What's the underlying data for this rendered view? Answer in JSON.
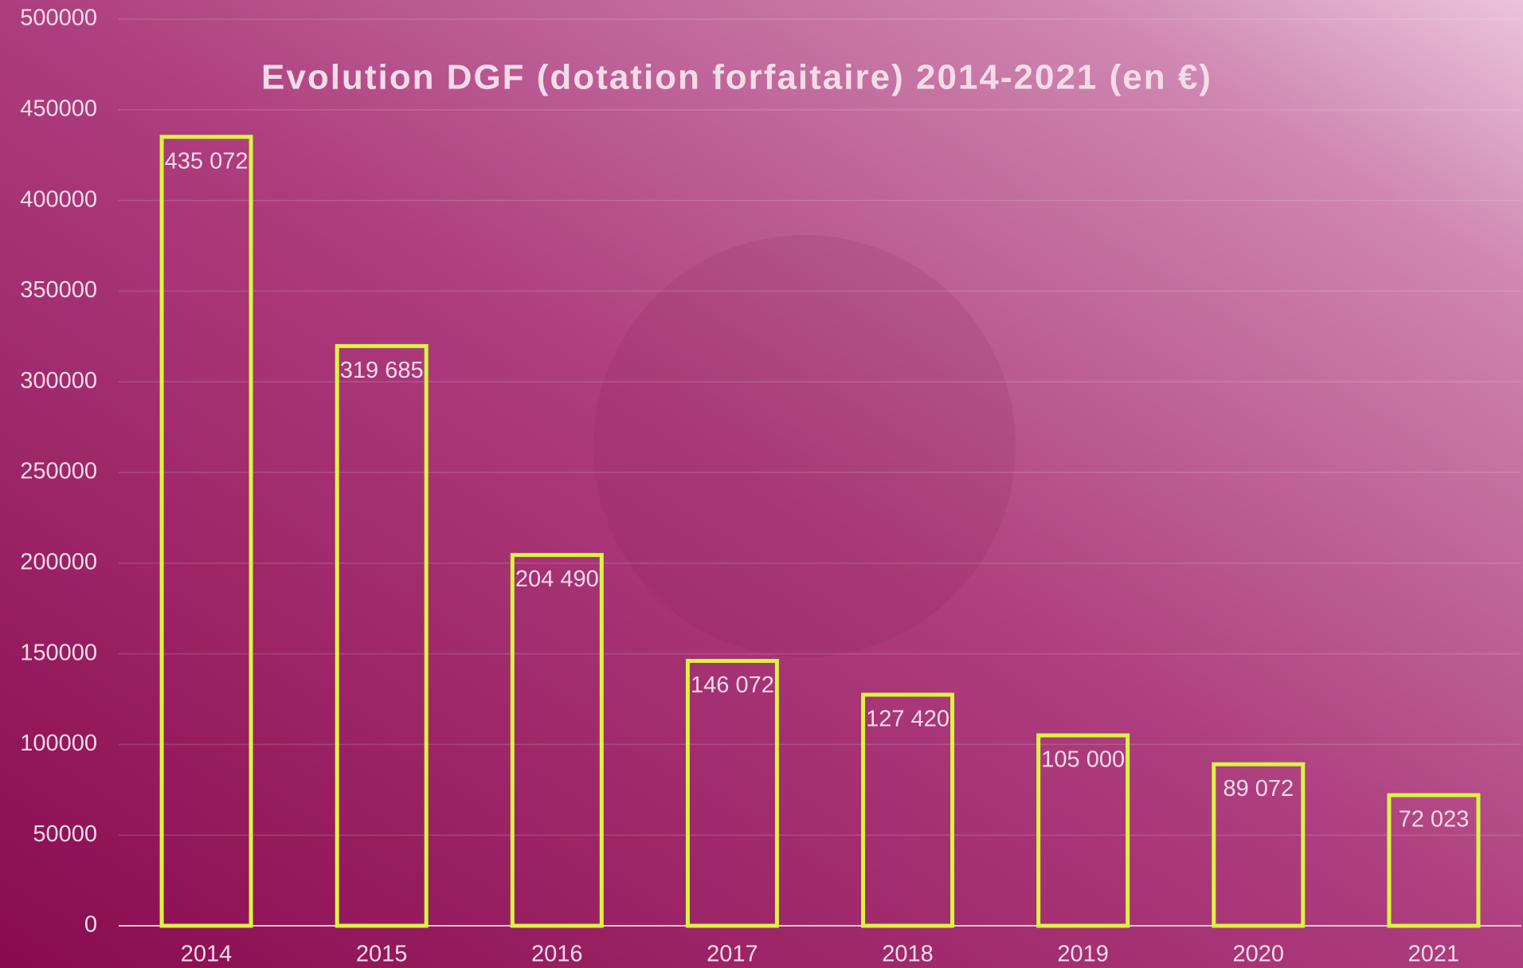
{
  "chart_data": {
    "type": "bar",
    "title": "Evolution DGF (dotation forfaitaire) 2014-2021 (en €)",
    "categories": [
      "2014",
      "2015",
      "2016",
      "2017",
      "2018",
      "2019",
      "2020",
      "2021"
    ],
    "values": [
      435072,
      319685,
      204490,
      146072,
      127420,
      105000,
      89072,
      72023
    ],
    "value_labels": [
      "435 072",
      "319 685",
      "204 490",
      "146 072",
      "127 420",
      "105 000",
      "89 072",
      "72 023"
    ],
    "color": "#d8f542",
    "ylim": [
      0,
      500000
    ],
    "yticks": [
      0,
      50000,
      100000,
      150000,
      200000,
      250000,
      300000,
      350000,
      400000,
      450000,
      500000
    ],
    "grid": true
  }
}
